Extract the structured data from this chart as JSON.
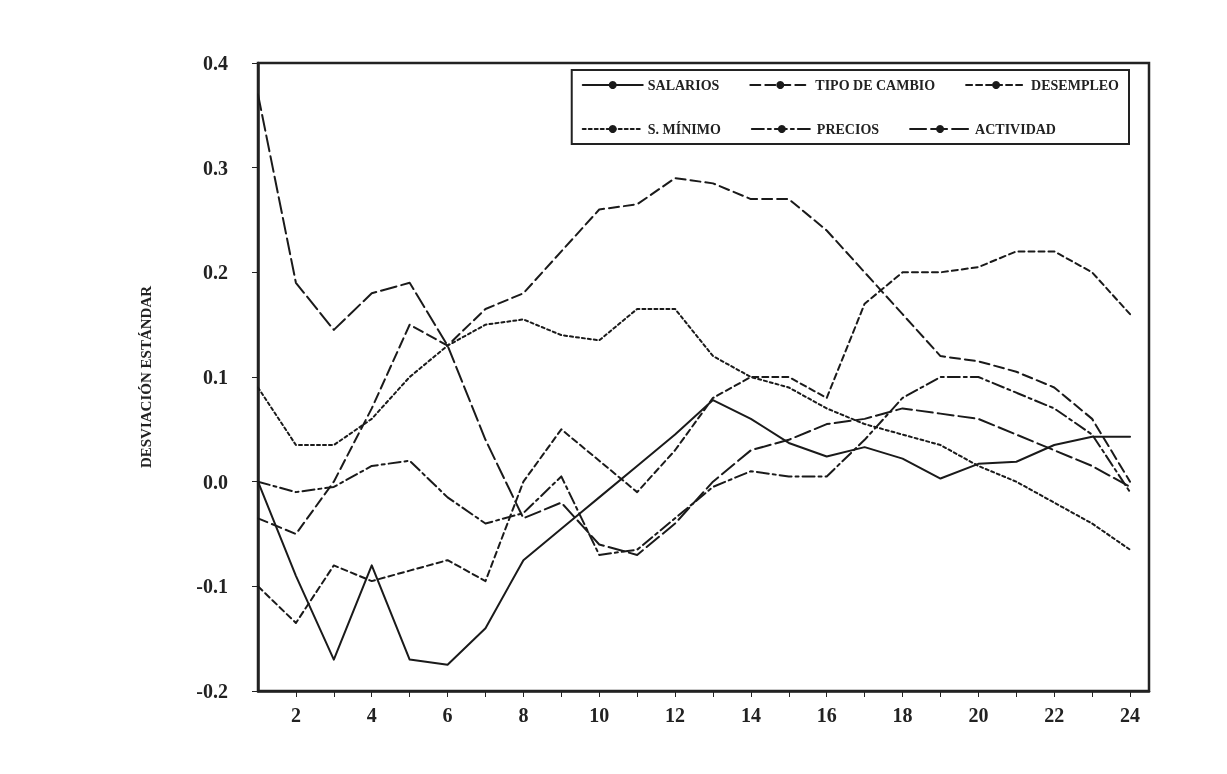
{
  "chart_data": {
    "type": "line",
    "ylabel": "DESVIACIÓN ESTÁNDAR",
    "x": [
      1,
      2,
      3,
      4,
      5,
      6,
      7,
      8,
      9,
      10,
      11,
      12,
      13,
      14,
      15,
      16,
      17,
      18,
      19,
      20,
      21,
      22,
      23,
      24
    ],
    "series": [
      {
        "name": "SALARIOS",
        "color": "#1a1a1a",
        "line_style": "solid",
        "values": [
          0.0,
          -0.09,
          -0.17,
          -0.08,
          -0.17,
          -0.175,
          -0.14,
          -0.075,
          -0.045,
          -0.015,
          0.015,
          0.045,
          0.078,
          0.06,
          0.037,
          0.024,
          0.033,
          0.022,
          0.003,
          0.017,
          0.019,
          0.035,
          0.043,
          0.043
        ]
      },
      {
        "name": "TIPO DE CAMBIO",
        "color": "#1a1a1a",
        "line_style": "dashed",
        "values": [
          -0.035,
          -0.05,
          0.0,
          0.07,
          0.15,
          0.13,
          0.165,
          0.18,
          0.22,
          0.26,
          0.265,
          0.29,
          0.285,
          0.27,
          0.27,
          0.24,
          0.2,
          0.16,
          0.12,
          0.115,
          0.105,
          0.09,
          0.06,
          0.0
        ]
      },
      {
        "name": "DESEMPLEO",
        "color": "#1a1a1a",
        "line_style": "dashed",
        "values": [
          -0.1,
          -0.135,
          -0.08,
          -0.095,
          -0.085,
          -0.075,
          -0.095,
          0.0,
          0.05,
          0.02,
          -0.01,
          0.03,
          0.08,
          0.1,
          0.1,
          0.08,
          0.17,
          0.2,
          0.2,
          0.205,
          0.22,
          0.22,
          0.2,
          0.16
        ]
      },
      {
        "name": "S. MÍNIMO",
        "color": "#1a1a1a",
        "line_style": "dotted",
        "values": [
          0.09,
          0.035,
          0.035,
          0.06,
          0.1,
          0.13,
          0.15,
          0.155,
          0.14,
          0.135,
          0.165,
          0.165,
          0.12,
          0.1,
          0.09,
          0.07,
          0.055,
          0.045,
          0.035,
          0.015,
          0.0,
          -0.02,
          -0.04,
          -0.065
        ]
      },
      {
        "name": "PRECIOS",
        "color": "#1a1a1a",
        "line_style": "dashed",
        "values": [
          0.0,
          -0.01,
          -0.005,
          0.015,
          0.02,
          -0.015,
          -0.04,
          -0.03,
          0.005,
          -0.07,
          -0.065,
          -0.035,
          -0.005,
          0.01,
          0.005,
          0.005,
          0.04,
          0.08,
          0.1,
          0.1,
          0.085,
          0.07,
          0.045,
          -0.01
        ]
      },
      {
        "name": "ACTIVIDAD",
        "color": "#1a1a1a",
        "line_style": "dashed",
        "values": [
          0.37,
          0.19,
          0.145,
          0.18,
          0.19,
          0.13,
          0.04,
          -0.035,
          -0.02,
          -0.06,
          -0.07,
          -0.04,
          0.0,
          0.03,
          0.04,
          0.055,
          0.06,
          0.07,
          0.065,
          0.06,
          0.045,
          0.03,
          0.015,
          -0.005
        ]
      }
    ],
    "xlim": [
      1,
      24.5
    ],
    "xticks": [
      2,
      {
        "value": 3,
        "label": null
      },
      4,
      {
        "value": 5,
        "label": null
      },
      6,
      {
        "value": 7,
        "label": null
      },
      8,
      {
        "value": 9,
        "label": null
      },
      10,
      {
        "value": 11,
        "label": null
      },
      12,
      {
        "value": 13,
        "label": null
      },
      14,
      {
        "value": 15,
        "label": null
      },
      16,
      {
        "value": 17,
        "label": null
      },
      18,
      {
        "value": 19,
        "label": null
      },
      20,
      {
        "value": 21,
        "label": null
      },
      22,
      {
        "value": 23,
        "label": null
      },
      24
    ],
    "ylim": [
      -0.2,
      0.4
    ],
    "yticks": [
      -0.2,
      -0.1,
      {
        "value": 0,
        "label": "0.0"
      },
      0.1,
      0.2,
      0.3,
      0.4
    ],
    "grid": false,
    "legend": "top right",
    "marker": "none"
  }
}
